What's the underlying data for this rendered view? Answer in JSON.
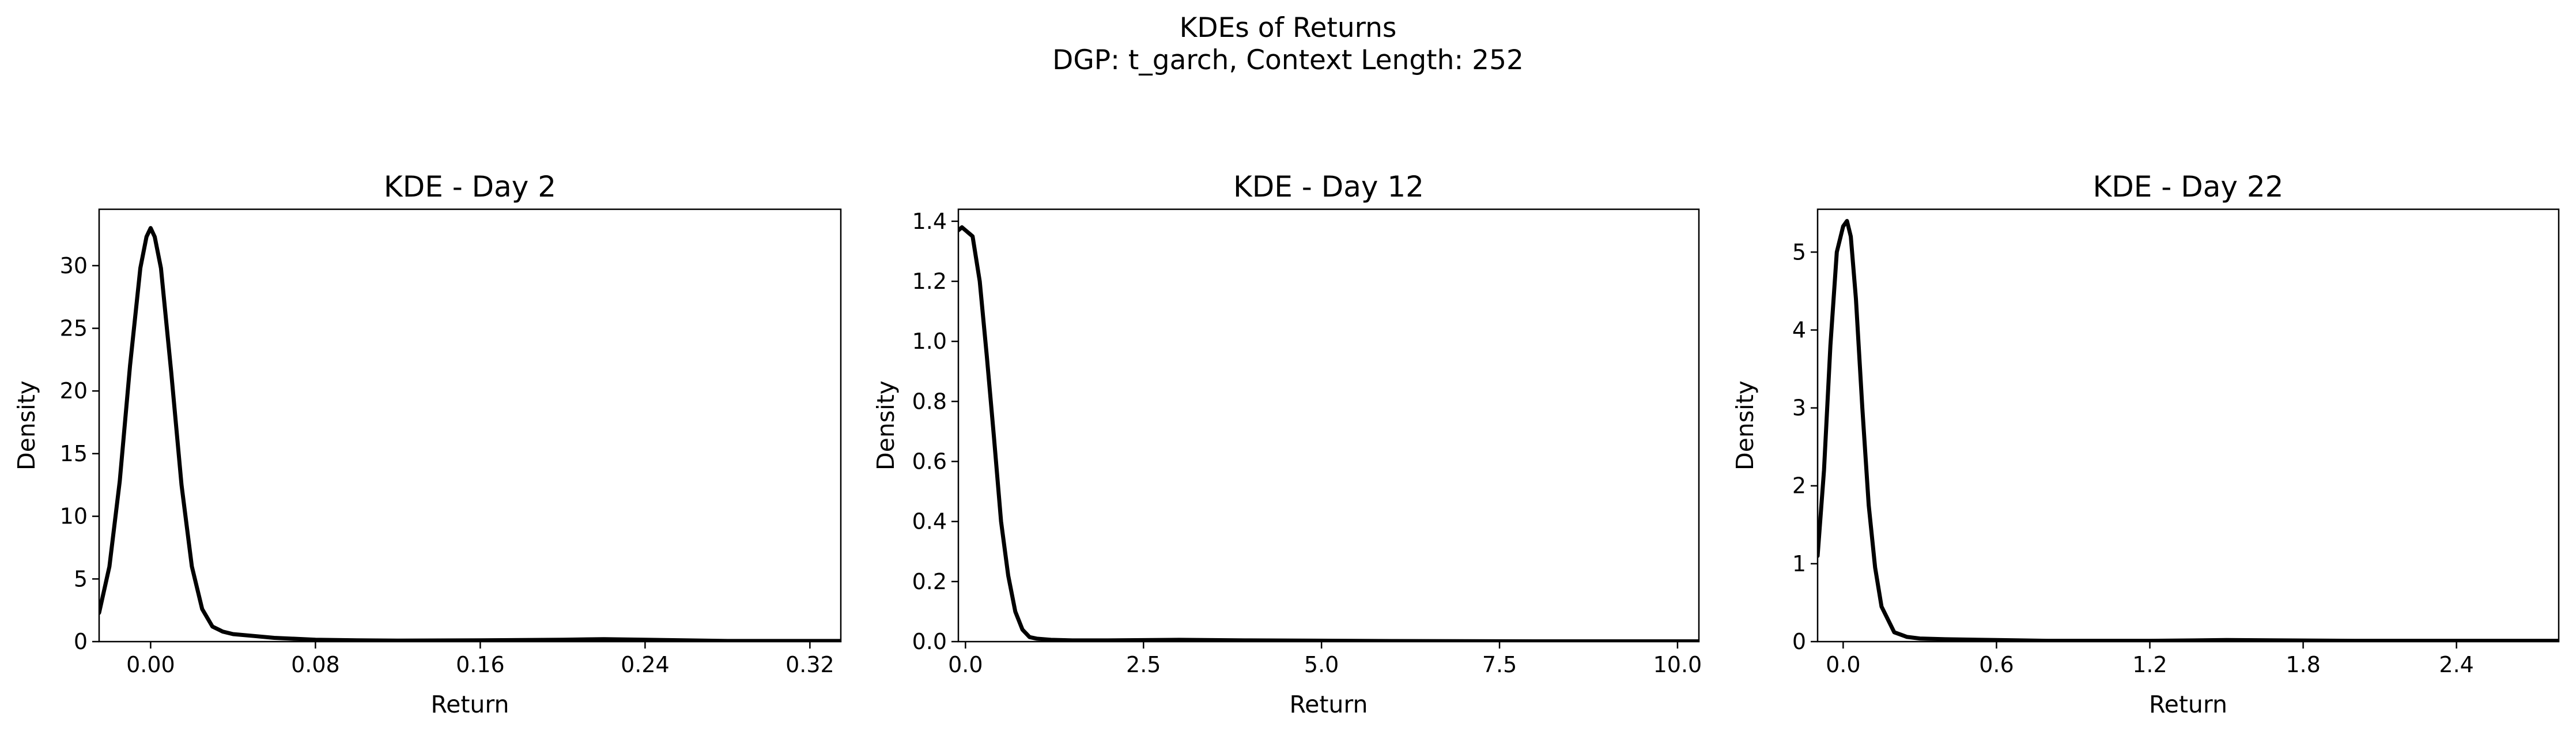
{
  "figure": {
    "title_line1": "KDEs of Returns",
    "title_line2": "DGP: t_garch, Context Length: 252"
  },
  "chart_data": [
    {
      "type": "line",
      "title": "KDE - Day 2",
      "xlabel": "Return",
      "ylabel": "Density",
      "xlim": [
        -0.025,
        0.335
      ],
      "ylim": [
        0,
        34.5
      ],
      "xticks": [
        0.0,
        0.08,
        0.16,
        0.24,
        0.32
      ],
      "xtick_labels": [
        "0.00",
        "0.08",
        "0.16",
        "0.24",
        "0.32"
      ],
      "yticks": [
        0,
        5,
        10,
        15,
        20,
        25,
        30
      ],
      "ytick_labels": [
        "0",
        "5",
        "10",
        "15",
        "20",
        "25",
        "30"
      ],
      "grid": false,
      "legend": "none",
      "color": "#000000",
      "series": [
        {
          "x": [
            -0.025,
            -0.02,
            -0.015,
            -0.01,
            -0.005,
            -0.002,
            0.0,
            0.002,
            0.005,
            0.01,
            0.015,
            0.02,
            0.025,
            0.03,
            0.035,
            0.04,
            0.05,
            0.06,
            0.08,
            0.1,
            0.12,
            0.16,
            0.2,
            0.22,
            0.24,
            0.28,
            0.32,
            0.335
          ],
          "y": [
            2.3,
            6.0,
            12.8,
            22.0,
            29.8,
            32.3,
            33.0,
            32.3,
            29.8,
            21.5,
            12.5,
            6.0,
            2.6,
            1.2,
            0.8,
            0.6,
            0.45,
            0.3,
            0.15,
            0.1,
            0.08,
            0.1,
            0.15,
            0.2,
            0.15,
            0.05,
            0.05,
            0.05
          ]
        }
      ]
    },
    {
      "type": "line",
      "title": "KDE - Day 12",
      "xlabel": "Return",
      "ylabel": "Density",
      "xlim": [
        -0.1,
        10.3
      ],
      "ylim": [
        0,
        1.44
      ],
      "xticks": [
        0.0,
        2.5,
        5.0,
        7.5,
        10.0
      ],
      "xtick_labels": [
        "0.0",
        "2.5",
        "5.0",
        "7.5",
        "10.0"
      ],
      "yticks": [
        0.0,
        0.2,
        0.4,
        0.6,
        0.8,
        1.0,
        1.2,
        1.4
      ],
      "ytick_labels": [
        "0.0",
        "0.2",
        "0.4",
        "0.6",
        "0.8",
        "1.0",
        "1.2",
        "1.4"
      ],
      "grid": false,
      "legend": "none",
      "color": "#000000",
      "series": [
        {
          "x": [
            -0.1,
            -0.05,
            0.0,
            0.05,
            0.1,
            0.2,
            0.3,
            0.4,
            0.5,
            0.6,
            0.7,
            0.8,
            0.9,
            1.0,
            1.2,
            1.5,
            2.0,
            3.0,
            4.0,
            6.0,
            8.0,
            10.3
          ],
          "y": [
            1.37,
            1.38,
            1.37,
            1.36,
            1.35,
            1.2,
            0.95,
            0.68,
            0.4,
            0.22,
            0.1,
            0.04,
            0.015,
            0.01,
            0.006,
            0.004,
            0.004,
            0.006,
            0.004,
            0.002,
            0.001,
            0.001
          ]
        }
      ]
    },
    {
      "type": "line",
      "title": "KDE - Day 22",
      "xlabel": "Return",
      "ylabel": "Density",
      "xlim": [
        -0.1,
        2.8
      ],
      "ylim": [
        0,
        5.55
      ],
      "xticks": [
        0.0,
        0.6,
        1.2,
        1.8,
        2.4
      ],
      "xtick_labels": [
        "0.0",
        "0.6",
        "1.2",
        "1.8",
        "2.4"
      ],
      "yticks": [
        0,
        1,
        2,
        3,
        4,
        5
      ],
      "ytick_labels": [
        "0",
        "1",
        "2",
        "3",
        "4",
        "5"
      ],
      "grid": false,
      "legend": "none",
      "color": "#000000",
      "series": [
        {
          "x": [
            -0.1,
            -0.075,
            -0.05,
            -0.025,
            0.0,
            0.015,
            0.03,
            0.05,
            0.075,
            0.1,
            0.125,
            0.15,
            0.2,
            0.25,
            0.3,
            0.4,
            0.6,
            0.8,
            1.2,
            1.5,
            2.0,
            2.4,
            2.8
          ],
          "y": [
            1.1,
            2.2,
            3.8,
            5.0,
            5.33,
            5.4,
            5.2,
            4.4,
            3.0,
            1.75,
            0.95,
            0.45,
            0.12,
            0.06,
            0.04,
            0.03,
            0.02,
            0.01,
            0.01,
            0.02,
            0.01,
            0.01,
            0.01
          ]
        }
      ]
    }
  ]
}
